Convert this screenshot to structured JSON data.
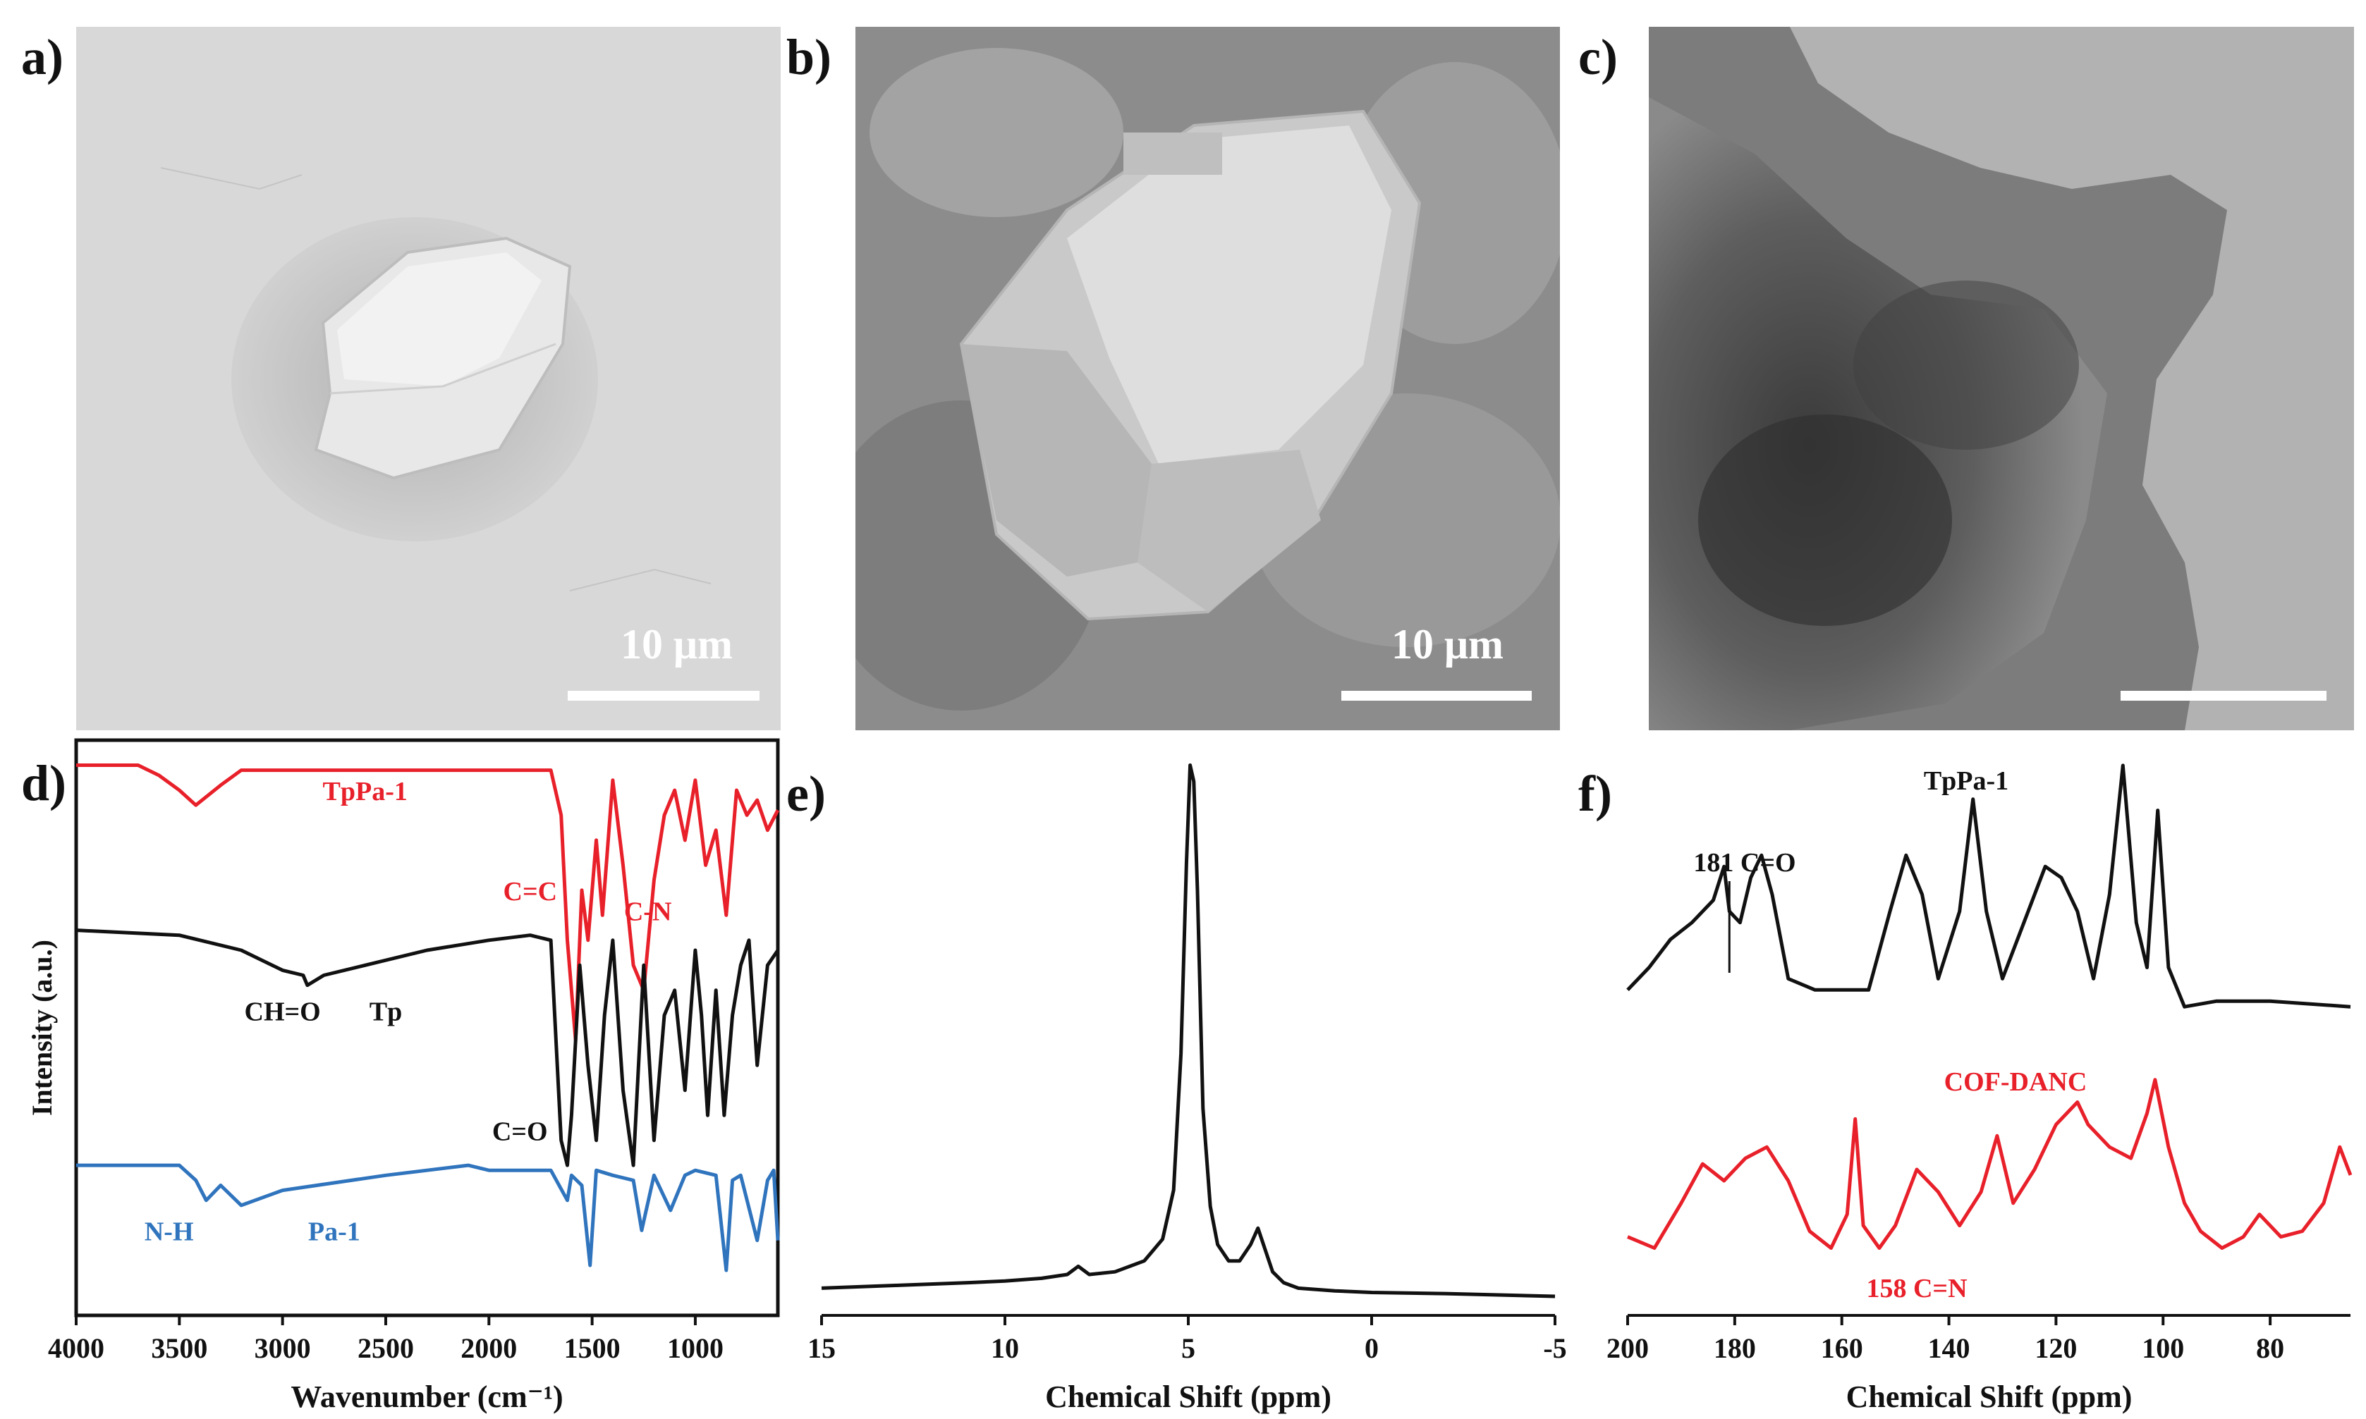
{
  "panels": {
    "a": {
      "letter": "a)",
      "scale_label": "10 μm"
    },
    "b": {
      "letter": "b)",
      "scale_label": "10 μm"
    },
    "c": {
      "letter": "c)"
    },
    "d": {
      "letter": "d)"
    },
    "e": {
      "letter": "e)"
    },
    "f": {
      "letter": "f)"
    }
  },
  "colors": {
    "red": "#e8202a",
    "black": "#111111",
    "blue": "#2f74bd"
  },
  "chart_data": [
    {
      "id": "d",
      "type": "line",
      "xlabel": "Wavenumber (cm⁻¹)",
      "ylabel": "Intensity (a.u.)",
      "xlim": [
        4000,
        600
      ],
      "xticks": [
        "4000",
        "3500",
        "3000",
        "2500",
        "2000",
        "1500",
        "1000"
      ],
      "series": [
        {
          "name": "TpPa-1",
          "color": "#e8202a",
          "x": [
            4000,
            3700,
            3600,
            3500,
            3420,
            3300,
            3200,
            1700,
            1650,
            1620,
            1580,
            1550,
            1520,
            1480,
            1450,
            1400,
            1350,
            1300,
            1250,
            1200,
            1150,
            1100,
            1050,
            1000,
            950,
            900,
            850,
            800,
            750,
            700,
            650,
            600
          ],
          "y": [
            0.95,
            0.95,
            0.93,
            0.9,
            0.87,
            0.91,
            0.94,
            0.94,
            0.85,
            0.6,
            0.4,
            0.7,
            0.6,
            0.8,
            0.65,
            0.92,
            0.75,
            0.55,
            0.5,
            0.72,
            0.85,
            0.9,
            0.8,
            0.92,
            0.75,
            0.82,
            0.65,
            0.9,
            0.85,
            0.88,
            0.82,
            0.86
          ]
        },
        {
          "name": "Tp",
          "color": "#111111",
          "x": [
            4000,
            3500,
            3200,
            3000,
            2900,
            2880,
            2800,
            2600,
            2300,
            2000,
            1800,
            1700,
            1650,
            1620,
            1600,
            1560,
            1520,
            1480,
            1440,
            1400,
            1350,
            1300,
            1250,
            1200,
            1150,
            1100,
            1050,
            1000,
            970,
            940,
            900,
            860,
            820,
            780,
            740,
            700,
            650,
            600
          ],
          "y": [
            0.62,
            0.61,
            0.58,
            0.54,
            0.53,
            0.51,
            0.53,
            0.55,
            0.58,
            0.6,
            0.61,
            0.6,
            0.2,
            0.15,
            0.25,
            0.55,
            0.35,
            0.2,
            0.45,
            0.6,
            0.3,
            0.15,
            0.55,
            0.2,
            0.45,
            0.5,
            0.3,
            0.58,
            0.45,
            0.25,
            0.5,
            0.25,
            0.45,
            0.55,
            0.6,
            0.35,
            0.55,
            0.58
          ]
        },
        {
          "name": "Pa-1",
          "color": "#2f74bd",
          "x": [
            4000,
            3500,
            3420,
            3370,
            3300,
            3200,
            3000,
            2500,
            2100,
            2000,
            1700,
            1620,
            1600,
            1550,
            1510,
            1480,
            1400,
            1300,
            1260,
            1200,
            1120,
            1050,
            1000,
            900,
            850,
            820,
            780,
            700,
            650,
            620,
            600
          ],
          "y": [
            0.15,
            0.15,
            0.12,
            0.08,
            0.11,
            0.07,
            0.1,
            0.13,
            0.15,
            0.14,
            0.14,
            0.08,
            0.13,
            0.11,
            -0.05,
            0.14,
            0.13,
            0.12,
            0.02,
            0.13,
            0.06,
            0.13,
            0.14,
            0.13,
            -0.06,
            0.12,
            0.13,
            0.0,
            0.12,
            0.14,
            0.0
          ]
        }
      ],
      "annotations": [
        {
          "text": "TpPa-1",
          "color": "#e8202a",
          "x": 2600,
          "y": 0.88
        },
        {
          "text": "C=C",
          "color": "#e8202a",
          "x": 1800,
          "y": 0.68
        },
        {
          "text": "C-N",
          "color": "#e8202a",
          "x": 1230,
          "y": 0.64
        },
        {
          "text": "CH=O",
          "color": "#111111",
          "x": 3000,
          "y": 0.44
        },
        {
          "text": "Tp",
          "color": "#111111",
          "x": 2500,
          "y": 0.44
        },
        {
          "text": "C=O",
          "color": "#111111",
          "x": 1850,
          "y": 0.2
        },
        {
          "text": "N-H",
          "color": "#2f74bd",
          "x": 3550,
          "y": 0.0
        },
        {
          "text": "Pa-1",
          "color": "#2f74bd",
          "x": 2750,
          "y": 0.0
        }
      ]
    },
    {
      "id": "e",
      "type": "line",
      "xlabel": "Chemical Shift (ppm)",
      "xlim": [
        15,
        -5
      ],
      "xticks": [
        "15",
        "10",
        "5",
        "0",
        "-5"
      ],
      "ylim": [
        0,
        1
      ],
      "series": [
        {
          "color": "#111111",
          "x": [
            15,
            13,
            11,
            10,
            9,
            8.3,
            8.0,
            7.7,
            7,
            6.2,
            5.7,
            5.4,
            5.2,
            5.05,
            4.95,
            4.85,
            4.75,
            4.6,
            4.4,
            4.2,
            3.9,
            3.6,
            3.3,
            3.1,
            2.9,
            2.7,
            2.4,
            2,
            1,
            0,
            -2,
            -5
          ],
          "y": [
            0.02,
            0.025,
            0.03,
            0.033,
            0.038,
            0.045,
            0.06,
            0.045,
            0.05,
            0.07,
            0.11,
            0.2,
            0.45,
            0.8,
            0.98,
            0.95,
            0.75,
            0.35,
            0.17,
            0.1,
            0.07,
            0.07,
            0.1,
            0.13,
            0.09,
            0.05,
            0.03,
            0.02,
            0.015,
            0.012,
            0.01,
            0.005
          ]
        }
      ]
    },
    {
      "id": "f",
      "type": "line",
      "xlabel": "Chemical Shift (ppm)",
      "xlim": [
        200,
        65
      ],
      "xticks": [
        "200",
        "180",
        "160",
        "140",
        "120",
        "100",
        "80"
      ],
      "series": [
        {
          "name": "TpPa-1",
          "color": "#111111",
          "x": [
            200,
            196,
            192,
            188,
            184,
            182,
            181,
            179,
            177,
            175,
            173,
            170,
            165,
            160,
            155,
            151,
            148,
            145,
            142,
            138,
            135.5,
            133,
            130,
            126,
            122,
            119,
            116,
            113,
            110,
            107.5,
            105,
            103,
            101,
            99,
            96,
            90,
            80,
            65
          ],
          "y": [
            0.58,
            0.62,
            0.67,
            0.7,
            0.74,
            0.8,
            0.72,
            0.7,
            0.78,
            0.82,
            0.75,
            0.6,
            0.58,
            0.58,
            0.58,
            0.72,
            0.82,
            0.75,
            0.6,
            0.72,
            0.92,
            0.72,
            0.6,
            0.7,
            0.8,
            0.78,
            0.72,
            0.6,
            0.75,
            0.98,
            0.7,
            0.62,
            0.9,
            0.62,
            0.55,
            0.56,
            0.56,
            0.55
          ]
        },
        {
          "name": "COF-DANC",
          "color": "#e8202a",
          "x": [
            200,
            195,
            190,
            186,
            182,
            178,
            174,
            170,
            166,
            162,
            159,
            157.5,
            156,
            153,
            150,
            146,
            142,
            138,
            134,
            131,
            128,
            124,
            120,
            116,
            114,
            110,
            106,
            103,
            101.5,
            99,
            96,
            93,
            89,
            85,
            82,
            78,
            74,
            70,
            67,
            65
          ],
          "y": [
            0.14,
            0.12,
            0.2,
            0.27,
            0.24,
            0.28,
            0.3,
            0.24,
            0.15,
            0.12,
            0.18,
            0.35,
            0.16,
            0.12,
            0.16,
            0.26,
            0.22,
            0.16,
            0.22,
            0.32,
            0.2,
            0.26,
            0.34,
            0.38,
            0.34,
            0.3,
            0.28,
            0.36,
            0.42,
            0.3,
            0.2,
            0.15,
            0.12,
            0.14,
            0.18,
            0.14,
            0.15,
            0.2,
            0.3,
            0.25
          ]
        }
      ],
      "annotations": [
        {
          "text": "TpPa-1",
          "color": "#111111"
        },
        {
          "text": "181 C=O",
          "color": "#111111"
        },
        {
          "text": "COF-DANC",
          "color": "#e8202a"
        },
        {
          "text": "158 C=N",
          "color": "#e8202a"
        }
      ]
    }
  ]
}
